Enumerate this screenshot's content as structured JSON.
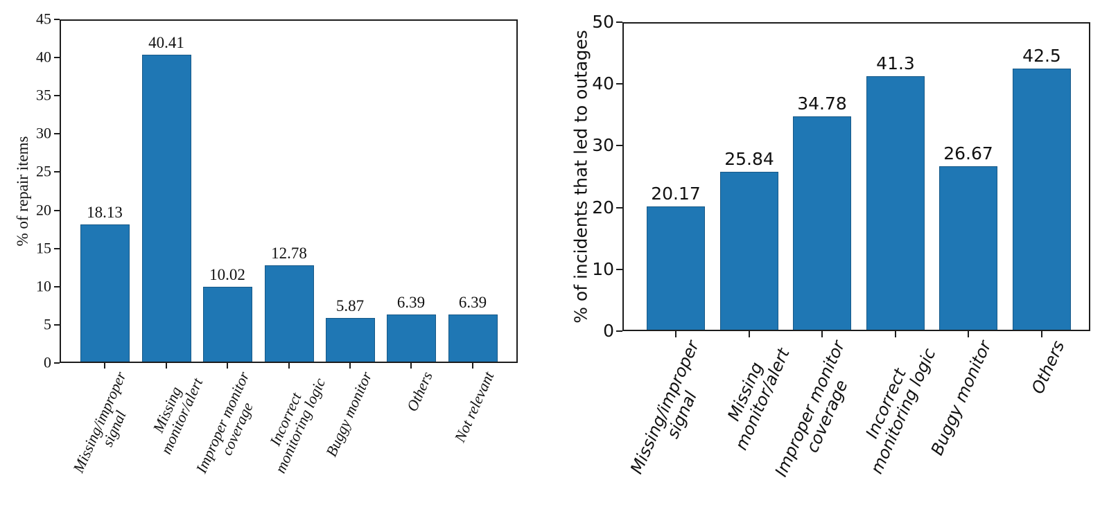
{
  "page": {
    "background": "#ffffff"
  },
  "chart_data": [
    {
      "type": "bar",
      "title": "",
      "ylabel": "% of repair items",
      "xlabel": "",
      "ylim": [
        0,
        45
      ],
      "yticks": [
        0,
        5,
        10,
        15,
        20,
        25,
        30,
        35,
        40,
        45
      ],
      "grid": false,
      "legend": "none",
      "bar_color": "#1f77b4",
      "text_color": "#111111",
      "categories": [
        "Missing/improper\nsignal",
        "Missing\nmonitor/alert",
        "Improper monitor\ncoverage",
        "Incorrect\nmonitoring logic",
        "Buggy monitor",
        "Others",
        "Not relevant"
      ],
      "values": [
        18.13,
        40.41,
        10.02,
        12.78,
        5.87,
        6.39,
        6.39
      ],
      "value_labels": [
        "18.13",
        "40.41",
        "10.02",
        "12.78",
        "5.87",
        "6.39",
        "6.39"
      ]
    },
    {
      "type": "bar",
      "title": "",
      "ylabel": "% of incidents that led to outages",
      "xlabel": "",
      "ylim": [
        0,
        50
      ],
      "yticks": [
        0,
        10,
        20,
        30,
        40,
        50
      ],
      "grid": false,
      "legend": "none",
      "bar_color": "#1f77b4",
      "text_color": "#111111",
      "categories": [
        "Missing/improper\nsignal",
        "Missing\nmonitor/alert",
        "Improper monitor\ncoverage",
        "Incorrect\nmonitoring logic",
        "Buggy monitor",
        "Others"
      ],
      "values": [
        20.17,
        25.84,
        34.78,
        41.3,
        26.67,
        42.5
      ],
      "value_labels": [
        "20.17",
        "25.84",
        "34.78",
        "41.3",
        "26.67",
        "42.5"
      ]
    }
  ]
}
